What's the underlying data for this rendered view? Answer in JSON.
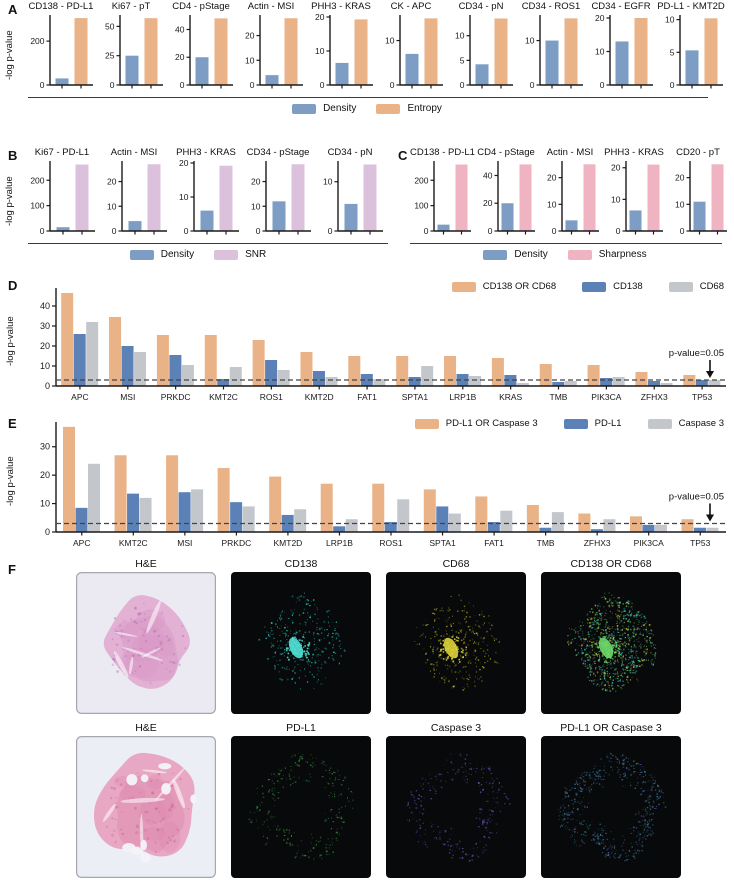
{
  "colors": {
    "density_blue": "#7E9DC4",
    "entropy_orange": "#EAB287",
    "snr_plum": "#DCC1DC",
    "sharpness_rose": "#F0B3C2",
    "union_orange": "#EAB287",
    "marker_blue": "#5B81B6",
    "marker_gray": "#C3C7CC",
    "axis": "#1A1A1A",
    "threshold": "#444444"
  },
  "chart_data": [
    {
      "panel": "A",
      "type": "bar",
      "ylabel": "-log p-value",
      "series_names": [
        "Density",
        "Entropy"
      ],
      "series_colors": [
        "#7E9DC4",
        "#EAB287"
      ],
      "subplots": [
        {
          "title": "CD138 - PD-L1",
          "yticks": [
            0,
            200
          ],
          "ymax": 310,
          "values": [
            30,
            305
          ]
        },
        {
          "title": "Ki67 - pT",
          "yticks": [
            0,
            25,
            50
          ],
          "ymax": 58,
          "values": [
            25,
            57
          ]
        },
        {
          "title": "CD4 - pStage",
          "yticks": [
            0,
            20,
            40
          ],
          "ymax": 49,
          "values": [
            20,
            48
          ]
        },
        {
          "title": "Actin - MSI",
          "yticks": [
            0,
            10,
            20
          ],
          "ymax": 27.5,
          "values": [
            4,
            27
          ]
        },
        {
          "title": "PHH3 - KRAS",
          "yticks": [
            0,
            10,
            20
          ],
          "ymax": 20,
          "values": [
            6.5,
            19.3
          ]
        },
        {
          "title": "CK - APC",
          "yticks": [
            0,
            10
          ],
          "ymax": 15.3,
          "values": [
            7,
            15
          ]
        },
        {
          "title": "CD34 - pN",
          "yticks": [
            0,
            5,
            10
          ],
          "ymax": 13.8,
          "values": [
            4.2,
            13.5
          ]
        },
        {
          "title": "CD34 - ROS1",
          "yticks": [
            0,
            10
          ],
          "ymax": 15.3,
          "values": [
            10,
            15
          ]
        },
        {
          "title": "CD34 - EGFR",
          "yticks": [
            0,
            10,
            20
          ],
          "ymax": 20.3,
          "values": [
            13,
            20
          ]
        },
        {
          "title": "PD-L1 - KMT2D",
          "yticks": [
            0,
            5,
            10
          ],
          "ymax": 10.4,
          "values": [
            5.3,
            10.2
          ]
        }
      ]
    },
    {
      "panel": "B",
      "type": "bar",
      "ylabel": "-log p-value",
      "series_names": [
        "Density",
        "SNR"
      ],
      "series_colors": [
        "#7E9DC4",
        "#DCC1DC"
      ],
      "subplots": [
        {
          "title": "Ki67 - PD-L1",
          "yticks": [
            0,
            100,
            200
          ],
          "ymax": 268,
          "values": [
            15,
            262
          ]
        },
        {
          "title": "Actin - MSI",
          "yticks": [
            0,
            10,
            20
          ],
          "ymax": 27.5,
          "values": [
            4,
            27
          ]
        },
        {
          "title": "PHH3 - KRAS",
          "yticks": [
            0,
            10,
            20
          ],
          "ymax": 20,
          "values": [
            6,
            19.2
          ]
        },
        {
          "title": "CD34 - pStage",
          "yticks": [
            0,
            10,
            20
          ],
          "ymax": 27.5,
          "values": [
            12,
            27
          ]
        },
        {
          "title": "CD34 - pN",
          "yticks": [
            0,
            10
          ],
          "ymax": 13.8,
          "values": [
            5.5,
            13.5
          ]
        }
      ]
    },
    {
      "panel": "C",
      "type": "bar",
      "ylabel": "",
      "series_names": [
        "Density",
        "Sharpness"
      ],
      "series_colors": [
        "#7E9DC4",
        "#F0B3C2"
      ],
      "subplots": [
        {
          "title": "CD138 - PD-L1",
          "yticks": [
            0,
            100,
            200
          ],
          "ymax": 268,
          "values": [
            25,
            262
          ]
        },
        {
          "title": "CD4 - pStage",
          "yticks": [
            0,
            20,
            40
          ],
          "ymax": 49,
          "values": [
            20,
            48
          ]
        },
        {
          "title": "Actin - MSI",
          "yticks": [
            0,
            10,
            20
          ],
          "ymax": 25.5,
          "values": [
            4,
            25
          ]
        },
        {
          "title": "PHH3 - KRAS",
          "yticks": [
            0,
            10,
            20
          ],
          "ymax": 21.5,
          "values": [
            6.5,
            21
          ]
        },
        {
          "title": "CD20 - pT",
          "yticks": [
            0,
            10,
            20
          ],
          "ymax": 25.5,
          "values": [
            11,
            25
          ]
        }
      ]
    },
    {
      "panel": "D",
      "type": "grouped_bar",
      "ylabel": "-log p-value",
      "yticks": [
        0,
        10,
        20,
        30,
        40
      ],
      "ymax": 48,
      "threshold_value": 3,
      "threshold_label": "p-value=0.05",
      "categories": [
        "APC",
        "MSI",
        "PRKDC",
        "KMT2C",
        "ROS1",
        "KMT2D",
        "FAT1",
        "SPTA1",
        "LRP1B",
        "KRAS",
        "TMB",
        "PIK3CA",
        "ZFHX3",
        "TP53"
      ],
      "series": [
        {
          "name": "CD138 OR CD68",
          "color": "#EAB287",
          "values": [
            46.5,
            34.5,
            25.5,
            25.5,
            23,
            17,
            15,
            15,
            15,
            14,
            11,
            10.5,
            7,
            5.5
          ]
        },
        {
          "name": "CD138",
          "color": "#5B81B6",
          "values": [
            26,
            20,
            15.5,
            3.5,
            13,
            7.5,
            6,
            4.5,
            6,
            5.5,
            2,
            4,
            2.5,
            3
          ]
        },
        {
          "name": "CD68",
          "color": "#C3C7CC",
          "values": [
            32,
            17,
            10.5,
            9.5,
            8,
            4.5,
            3.5,
            10,
            5,
            1.5,
            2.5,
            4.5,
            1.5,
            3
          ]
        }
      ]
    },
    {
      "panel": "E",
      "type": "grouped_bar",
      "ylabel": "-log p-value",
      "yticks": [
        0,
        10,
        20,
        30
      ],
      "ymax": 38,
      "threshold_value": 3,
      "threshold_label": "p-value=0.05",
      "categories": [
        "APC",
        "KMT2C",
        "MSI",
        "PRKDC",
        "KMT2D",
        "LRP1B",
        "ROS1",
        "SPTA1",
        "FAT1",
        "TMB",
        "ZFHX3",
        "PIK3CA",
        "TP53"
      ],
      "series": [
        {
          "name": "PD-L1 OR Caspase 3",
          "color": "#EAB287",
          "values": [
            37,
            27,
            27,
            22.5,
            19.5,
            17,
            17,
            15,
            12.5,
            9.5,
            6.5,
            5.5,
            4.5
          ]
        },
        {
          "name": "PD-L1",
          "color": "#5B81B6",
          "values": [
            8.5,
            13.5,
            14,
            10.5,
            6,
            2,
            3.5,
            9,
            3.5,
            1.5,
            1,
            2.5,
            1.5
          ]
        },
        {
          "name": "Caspase 3",
          "color": "#C3C7CC",
          "values": [
            24,
            12,
            15,
            9,
            8,
            4.5,
            11.5,
            6.5,
            7.5,
            7,
            4.5,
            2.5,
            1.5
          ]
        }
      ]
    }
  ],
  "panel_f": {
    "label": "F",
    "rows": [
      {
        "cells": [
          {
            "title": "H&E",
            "kind": "he",
            "bg": "#ebeaf3",
            "palette": [
              "#e2aed2",
              "#d793c4",
              "#a76bb0"
            ],
            "holes": false,
            "shape_seed": 71,
            "seed": 11,
            "radius": 48
          },
          {
            "title": "CD138",
            "kind": "if",
            "palette": [
              "#35d6cc",
              "#1fa89e"
            ],
            "density": 330,
            "pattern": "cluster",
            "core": "#52e2d6",
            "shape_seed": 71,
            "seed": 21,
            "radius": 48
          },
          {
            "title": "CD68",
            "kind": "if",
            "palette": [
              "#d2c72e",
              "#a09622"
            ],
            "density": 310,
            "pattern": "cluster",
            "core": "#ded43a",
            "shape_seed": 71,
            "seed": 31,
            "radius": 48
          },
          {
            "title": "CD138 OR CD68",
            "kind": "if",
            "palette": [
              "#38cfc4",
              "#d2c72e",
              "#58c97a"
            ],
            "density": 950,
            "pattern": "cluster",
            "core": "#6fd96a",
            "shape_seed": 71,
            "seed": 41,
            "radius": 48
          }
        ]
      },
      {
        "cells": [
          {
            "title": "H&E",
            "kind": "he",
            "bg": "#ecEEf6",
            "palette": [
              "#e8a3c0",
              "#dd85ab",
              "#c05d88"
            ],
            "holes": true,
            "shape_seed": 92,
            "seed": 51,
            "radius": 54
          },
          {
            "title": "PD-L1",
            "kind": "if",
            "palette": [
              "#3f9e49",
              "#2c7a36"
            ],
            "density": 280,
            "pattern": "ring",
            "core": null,
            "shape_seed": 92,
            "seed": 61,
            "radius": 52
          },
          {
            "title": "Caspase 3",
            "kind": "if",
            "palette": [
              "#6f5cc4",
              "#52409e"
            ],
            "density": 280,
            "pattern": "ring",
            "core": null,
            "shape_seed": 92,
            "seed": 71,
            "radius": 52
          },
          {
            "title": "PD-L1 OR Caspase 3",
            "kind": "if",
            "palette": [
              "#3a7f98",
              "#5a64b8",
              "#2f6f8a"
            ],
            "density": 560,
            "pattern": "ring",
            "core": null,
            "shape_seed": 92,
            "seed": 81,
            "radius": 52
          }
        ]
      }
    ]
  }
}
